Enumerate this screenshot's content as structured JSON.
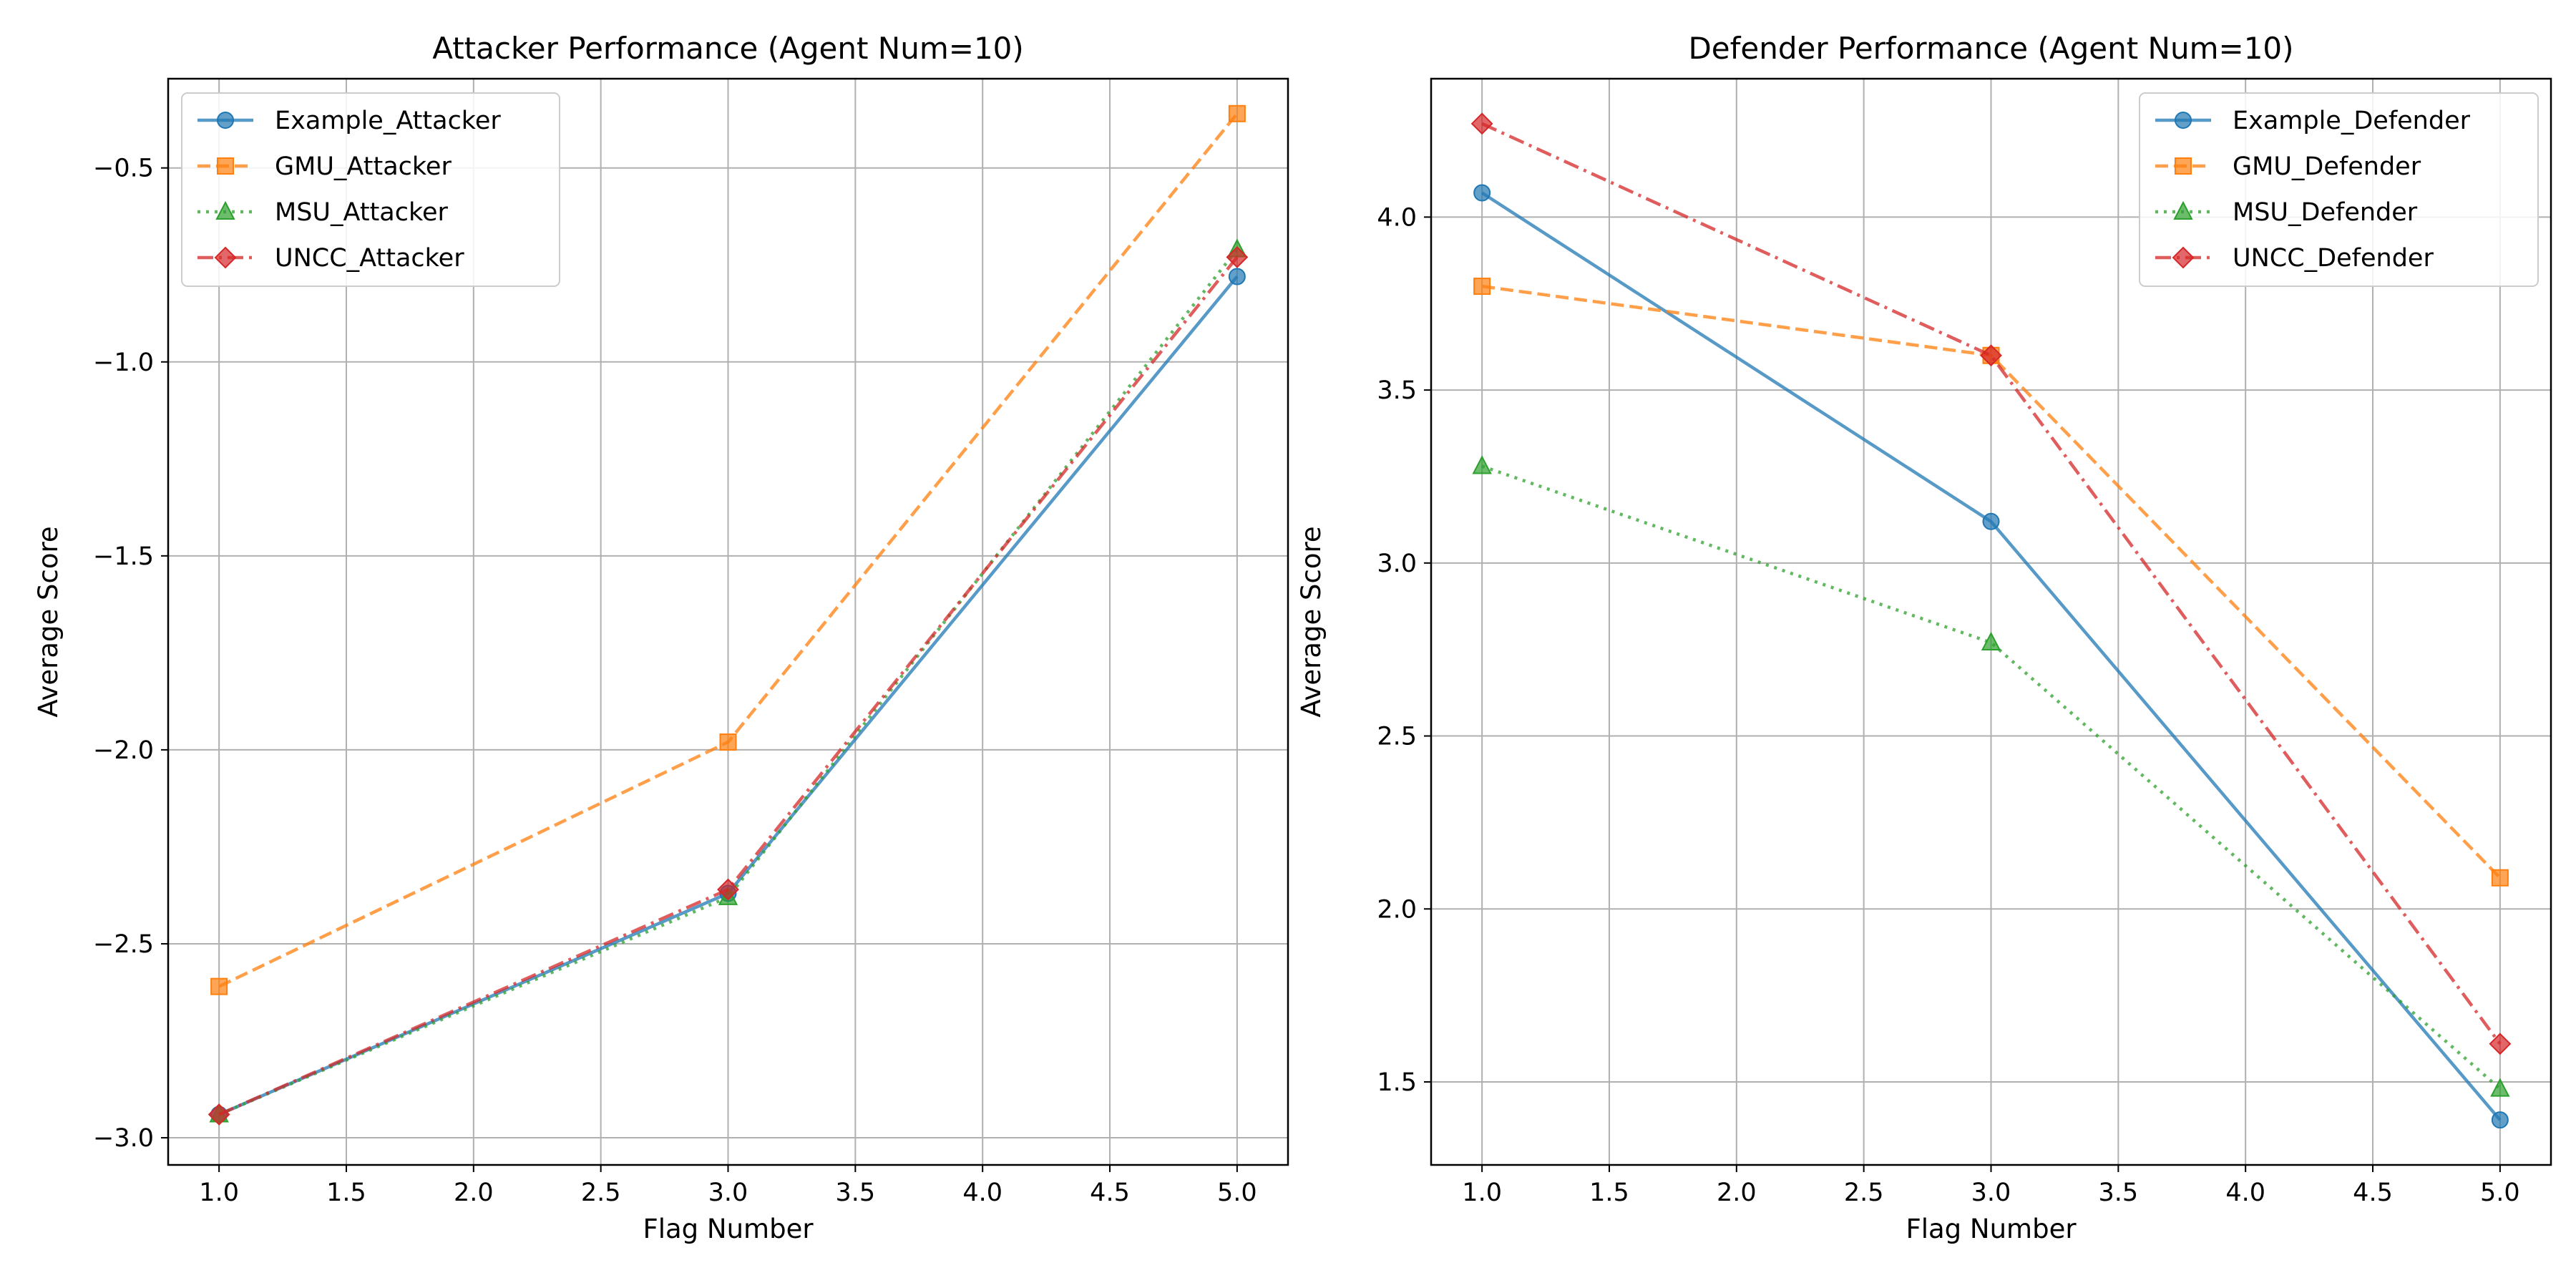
{
  "chart_data": [
    {
      "type": "line",
      "title": "Attacker Performance (Agent Num=10)",
      "xlabel": "Flag Number",
      "ylabel": "Average Score",
      "xlim": [
        0.8,
        5.2
      ],
      "ylim": [
        -3.07,
        -0.27
      ],
      "xticks": [
        1.0,
        1.5,
        2.0,
        2.5,
        3.0,
        3.5,
        4.0,
        4.5,
        5.0
      ],
      "yticks": [
        -3.0,
        -2.5,
        -2.0,
        -1.5,
        -1.0,
        -0.5
      ],
      "xtick_labels": [
        "1.0",
        "1.5",
        "2.0",
        "2.5",
        "3.0",
        "3.5",
        "4.0",
        "4.5",
        "5.0"
      ],
      "ytick_labels": [
        "−3.0",
        "−2.5",
        "−2.0",
        "−1.5",
        "−1.0",
        "−0.5"
      ],
      "grid": true,
      "legend_position": "top-left",
      "x": [
        1,
        3,
        5
      ],
      "series": [
        {
          "name": "Example_Attacker",
          "values": [
            -2.94,
            -2.37,
            -0.78
          ],
          "color": "#1f77b4",
          "dash": "solid",
          "marker": "circle"
        },
        {
          "name": "GMU_Attacker",
          "values": [
            -2.61,
            -1.98,
            -0.36
          ],
          "color": "#ff7f0e",
          "dash": "dashed",
          "marker": "square"
        },
        {
          "name": "MSU_Attacker",
          "values": [
            -2.94,
            -2.38,
            -0.71
          ],
          "color": "#2ca02c",
          "dash": "dotted",
          "marker": "triangle"
        },
        {
          "name": "UNCC_Attacker",
          "values": [
            -2.94,
            -2.36,
            -0.73
          ],
          "color": "#d62728",
          "dash": "dashdot",
          "marker": "diamond"
        }
      ]
    },
    {
      "type": "line",
      "title": "Defender Performance (Agent Num=10)",
      "xlabel": "Flag Number",
      "ylabel": "Average Score",
      "xlim": [
        0.8,
        5.2
      ],
      "ylim": [
        1.26,
        4.4
      ],
      "xticks": [
        1.0,
        1.5,
        2.0,
        2.5,
        3.0,
        3.5,
        4.0,
        4.5,
        5.0
      ],
      "yticks": [
        1.5,
        2.0,
        2.5,
        3.0,
        3.5,
        4.0
      ],
      "xtick_labels": [
        "1.0",
        "1.5",
        "2.0",
        "2.5",
        "3.0",
        "3.5",
        "4.0",
        "4.5",
        "5.0"
      ],
      "ytick_labels": [
        "1.5",
        "2.0",
        "2.5",
        "3.0",
        "3.5",
        "4.0"
      ],
      "grid": true,
      "legend_position": "top-right",
      "x": [
        1,
        3,
        5
      ],
      "series": [
        {
          "name": "Example_Defender",
          "values": [
            4.07,
            3.12,
            1.39
          ],
          "color": "#1f77b4",
          "dash": "solid",
          "marker": "circle"
        },
        {
          "name": "GMU_Defender",
          "values": [
            3.8,
            3.6,
            2.09
          ],
          "color": "#ff7f0e",
          "dash": "dashed",
          "marker": "square"
        },
        {
          "name": "MSU_Defender",
          "values": [
            3.28,
            2.77,
            1.48
          ],
          "color": "#2ca02c",
          "dash": "dotted",
          "marker": "triangle"
        },
        {
          "name": "UNCC_Defender",
          "values": [
            4.27,
            3.6,
            1.61
          ],
          "color": "#d62728",
          "dash": "dashdot",
          "marker": "diamond"
        }
      ]
    }
  ]
}
